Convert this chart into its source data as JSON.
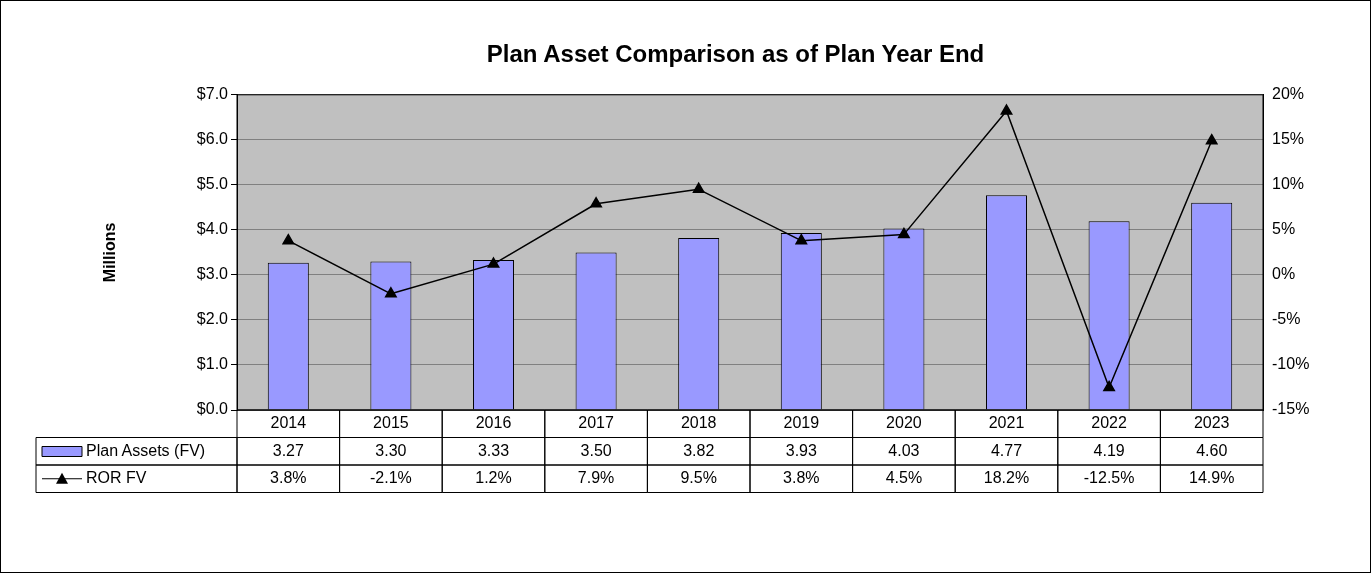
{
  "chart_data": {
    "type": "bar",
    "title": "Plan Asset Comparison as of Plan Year End",
    "ylabel": "Millions",
    "categories": [
      "2014",
      "2015",
      "2016",
      "2017",
      "2018",
      "2019",
      "2020",
      "2021",
      "2022",
      "2023"
    ],
    "series": [
      {
        "name": "Plan Assets (FV)",
        "color": "#9999ff",
        "values": [
          3.27,
          3.3,
          3.33,
          3.5,
          3.82,
          3.93,
          4.03,
          4.77,
          4.19,
          4.6
        ],
        "value_labels": [
          "3.27",
          "3.30",
          "3.33",
          "3.50",
          "3.82",
          "3.93",
          "4.03",
          "4.77",
          "4.19",
          "4.60"
        ]
      },
      {
        "name": "ROR FV",
        "type": "line",
        "axis": "y2",
        "color": "#000000",
        "marker": "triangle",
        "values": [
          3.8,
          -2.1,
          1.2,
          7.9,
          9.5,
          3.8,
          4.5,
          18.2,
          -12.5,
          14.9
        ],
        "value_labels": [
          "3.8%",
          "-2.1%",
          "1.2%",
          "7.9%",
          "9.5%",
          "3.8%",
          "4.5%",
          "18.2%",
          "-12.5%",
          "14.9%"
        ]
      }
    ],
    "ylim": [
      0,
      7
    ],
    "yticks": [
      {
        "value": 0,
        "label": "$0.0"
      },
      {
        "value": 1,
        "label": "$1.0"
      },
      {
        "value": 2,
        "label": "$2.0"
      },
      {
        "value": 3,
        "label": "$3.0"
      },
      {
        "value": 4,
        "label": "$4.0"
      },
      {
        "value": 5,
        "label": "$5.0"
      },
      {
        "value": 6,
        "label": "$6.0"
      },
      {
        "value": 7,
        "label": "$7.0"
      }
    ],
    "y2lim": [
      -15,
      20
    ],
    "y2ticks": [
      {
        "value": -15,
        "label": "-15%"
      },
      {
        "value": -10,
        "label": "-10%"
      },
      {
        "value": -5,
        "label": "-5%"
      },
      {
        "value": 0,
        "label": "0%"
      },
      {
        "value": 5,
        "label": "5%"
      },
      {
        "value": 10,
        "label": "10%"
      },
      {
        "value": 15,
        "label": "15%"
      },
      {
        "value": 20,
        "label": "20%"
      }
    ],
    "grid": "y",
    "legend": "bottom"
  }
}
